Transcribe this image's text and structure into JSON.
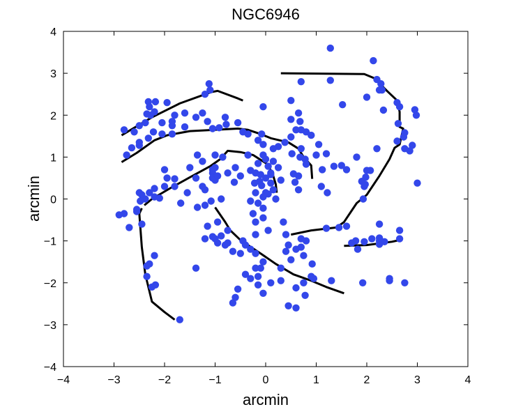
{
  "chart_data": {
    "type": "scatter",
    "title": "NGC6946",
    "xlabel": "arcmin",
    "ylabel": "arcmin",
    "xlim": [
      -4,
      4
    ],
    "ylim": [
      -4,
      4
    ],
    "xticks": [
      "−4",
      "−3",
      "−2",
      "−1",
      "0",
      "1",
      "2",
      "3",
      "4"
    ],
    "yticks": [
      "−4",
      "−3",
      "−2",
      "−1",
      "0",
      "1",
      "2",
      "3",
      "4"
    ],
    "grid": false,
    "colors": {
      "points": "#3347ea",
      "lines": "#000000"
    },
    "points": [
      [
        1.28,
        3.6
      ],
      [
        2.13,
        3.3
      ],
      [
        1.28,
        2.83
      ],
      [
        0.7,
        2.8
      ],
      [
        2.2,
        2.85
      ],
      [
        2.28,
        2.75
      ],
      [
        2.3,
        2.6
      ],
      [
        2.25,
        2.6
      ],
      [
        2.0,
        2.43
      ],
      [
        2.6,
        2.3
      ],
      [
        2.65,
        2.2
      ],
      [
        2.33,
        2.12
      ],
      [
        2.95,
        2.13
      ],
      [
        2.98,
        2.0
      ],
      [
        2.62,
        1.8
      ],
      [
        2.75,
        1.58
      ],
      [
        2.73,
        1.48
      ],
      [
        2.6,
        1.38
      ],
      [
        2.9,
        1.28
      ],
      [
        2.75,
        1.2
      ],
      [
        2.85,
        1.15
      ],
      [
        2.2,
        1.2
      ],
      [
        3.0,
        0.38
      ],
      [
        1.52,
        2.25
      ],
      [
        0.5,
        2.35
      ],
      [
        0.65,
        2.05
      ],
      [
        0.5,
        1.9
      ],
      [
        0.68,
        1.85
      ],
      [
        0.6,
        1.65
      ],
      [
        0.7,
        1.65
      ],
      [
        0.8,
        1.6
      ],
      [
        0.9,
        1.52
      ],
      [
        0.5,
        1.48
      ],
      [
        0.38,
        1.35
      ],
      [
        0.52,
        1.08
      ],
      [
        0.68,
        1.0
      ],
      [
        0.7,
        1.2
      ],
      [
        0.78,
        0.95
      ],
      [
        1.2,
        1.08
      ],
      [
        1.05,
        1.3
      ],
      [
        1.0,
        1.05
      ],
      [
        0.8,
        0.83
      ],
      [
        1.8,
        1.0
      ],
      [
        2.0,
        0.68
      ],
      [
        1.98,
        0.52
      ],
      [
        1.9,
        0.42
      ],
      [
        1.95,
        0.3
      ],
      [
        2.07,
        0.68
      ],
      [
        1.97,
        0.35
      ],
      [
        1.5,
        0.8
      ],
      [
        1.6,
        0.7
      ],
      [
        1.35,
        0.78
      ],
      [
        1.12,
        0.7
      ],
      [
        0.65,
        0.55
      ],
      [
        0.58,
        0.4
      ],
      [
        0.65,
        0.22
      ],
      [
        1.1,
        0.3
      ],
      [
        1.22,
        0.15
      ],
      [
        0.25,
        1.25
      ],
      [
        0.55,
        0.6
      ],
      [
        -0.05,
        2.2
      ],
      [
        -0.08,
        1.55
      ],
      [
        -0.15,
        1.4
      ],
      [
        -0.35,
        1.55
      ],
      [
        -0.45,
        1.6
      ],
      [
        -0.05,
        1.3
      ],
      [
        -0.35,
        1.05
      ],
      [
        -0.05,
        1.05
      ],
      [
        0.15,
        1.2
      ],
      [
        -0.15,
        0.85
      ],
      [
        0.05,
        0.78
      ],
      [
        0.15,
        0.9
      ],
      [
        -0.3,
        0.68
      ],
      [
        -0.2,
        0.62
      ],
      [
        -0.1,
        0.58
      ],
      [
        0.1,
        0.62
      ],
      [
        0.0,
        0.95
      ],
      [
        0.25,
        0.75
      ],
      [
        -0.12,
        0.42
      ],
      [
        -0.22,
        0.38
      ],
      [
        -0.08,
        0.32
      ],
      [
        0.1,
        0.38
      ],
      [
        0.15,
        0.22
      ],
      [
        0.0,
        0.15
      ],
      [
        -0.2,
        0.15
      ],
      [
        -0.05,
        0.05
      ],
      [
        -0.15,
        -0.1
      ],
      [
        0.05,
        0.12
      ],
      [
        0.2,
        0.0
      ],
      [
        -0.3,
        -0.05
      ],
      [
        -0.05,
        -0.22
      ],
      [
        -0.25,
        -0.35
      ],
      [
        -0.05,
        -0.45
      ],
      [
        -0.2,
        -0.55
      ],
      [
        0.05,
        -0.75
      ],
      [
        -0.2,
        -0.85
      ],
      [
        -0.45,
        -1.0
      ],
      [
        -0.4,
        -1.1
      ],
      [
        -0.3,
        -1.2
      ],
      [
        -0.2,
        -1.3
      ],
      [
        -0.05,
        -1.5
      ],
      [
        -0.2,
        -1.65
      ],
      [
        -0.4,
        -1.8
      ],
      [
        -0.55,
        -2.15
      ],
      [
        -0.6,
        -2.35
      ],
      [
        -0.65,
        -2.48
      ],
      [
        -0.3,
        -1.9
      ],
      [
        -0.15,
        -2.05
      ],
      [
        -0.05,
        -2.25
      ],
      [
        0.3,
        -1.95
      ],
      [
        0.1,
        -2.0
      ],
      [
        0.3,
        -1.65
      ],
      [
        0.4,
        -1.25
      ],
      [
        0.45,
        -1.1
      ],
      [
        0.6,
        -1.2
      ],
      [
        0.7,
        -1.15
      ],
      [
        0.7,
        -0.95
      ],
      [
        0.8,
        -1.0
      ],
      [
        0.75,
        -1.35
      ],
      [
        0.5,
        -1.45
      ],
      [
        0.9,
        -1.85
      ],
      [
        0.95,
        -1.9
      ],
      [
        0.75,
        -2.0
      ],
      [
        0.6,
        -2.12
      ],
      [
        0.45,
        -2.55
      ],
      [
        0.6,
        -2.6
      ],
      [
        0.78,
        -2.3
      ],
      [
        0.92,
        -1.55
      ],
      [
        1.3,
        -1.95
      ],
      [
        0.4,
        -0.85
      ],
      [
        1.2,
        -0.7
      ],
      [
        1.45,
        -0.68
      ],
      [
        1.6,
        -0.65
      ],
      [
        1.78,
        -1.0
      ],
      [
        1.7,
        -1.05
      ],
      [
        1.82,
        -1.2
      ],
      [
        1.95,
        -1.02
      ],
      [
        2.1,
        -0.95
      ],
      [
        2.25,
        -0.93
      ],
      [
        2.25,
        -1.0
      ],
      [
        2.35,
        -1.02
      ],
      [
        2.25,
        -1.08
      ],
      [
        2.65,
        -0.75
      ],
      [
        2.65,
        -0.95
      ],
      [
        2.45,
        -1.9
      ],
      [
        2.45,
        -1.95
      ],
      [
        1.92,
        -2.0
      ],
      [
        2.75,
        -2.0
      ],
      [
        2.25,
        -0.6
      ],
      [
        1.93,
        0.0
      ],
      [
        -1.25,
        2.05
      ],
      [
        -1.12,
        2.75
      ],
      [
        -1.1,
        2.6
      ],
      [
        -1.2,
        2.5
      ],
      [
        -1.6,
        2.05
      ],
      [
        -1.8,
        2.0
      ],
      [
        -1.85,
        1.75
      ],
      [
        -1.85,
        1.85
      ],
      [
        -1.6,
        1.72
      ],
      [
        -1.38,
        1.95
      ],
      [
        -1.15,
        1.85
      ],
      [
        -1.05,
        1.68
      ],
      [
        -0.92,
        1.7
      ],
      [
        -0.78,
        1.78
      ],
      [
        -0.8,
        1.95
      ],
      [
        -0.55,
        1.82
      ],
      [
        -2.18,
        2.32
      ],
      [
        -2.28,
        2.0
      ],
      [
        -2.22,
        1.6
      ],
      [
        -2.32,
        1.45
      ],
      [
        -2.5,
        1.28
      ],
      [
        -2.6,
        1.6
      ],
      [
        -2.5,
        1.75
      ],
      [
        -2.5,
        1.35
      ],
      [
        -2.65,
        1.22
      ],
      [
        -2.38,
        1.82
      ],
      [
        -2.35,
        2.03
      ],
      [
        -2.2,
        2.08
      ],
      [
        -2.05,
        1.82
      ],
      [
        -2.05,
        1.55
      ],
      [
        -1.85,
        1.55
      ],
      [
        -2.32,
        2.32
      ],
      [
        -2.3,
        2.2
      ],
      [
        -2.8,
        1.65
      ],
      [
        -1.95,
        2.3
      ],
      [
        -2.75,
        1.05
      ],
      [
        -1.0,
        1.05
      ],
      [
        -1.25,
        0.9
      ],
      [
        -1.35,
        1.05
      ],
      [
        -1.5,
        0.75
      ],
      [
        -1.38,
        0.5
      ],
      [
        -1.25,
        0.3
      ],
      [
        -1.2,
        0.22
      ],
      [
        -1.0,
        0.75
      ],
      [
        -1.05,
        0.62
      ],
      [
        -1.05,
        0.5
      ],
      [
        -1.0,
        0.45
      ],
      [
        -1.05,
        0.7
      ],
      [
        -0.95,
        0.55
      ],
      [
        -0.88,
        0.0
      ],
      [
        -0.62,
        0.4
      ],
      [
        -0.75,
        0.62
      ],
      [
        -0.5,
        0.55
      ],
      [
        -1.8,
        0.48
      ],
      [
        -1.8,
        0.3
      ],
      [
        -1.95,
        0.5
      ],
      [
        -2.0,
        0.3
      ],
      [
        -2.0,
        0.7
      ],
      [
        -2.2,
        0.25
      ],
      [
        -2.3,
        0.15
      ],
      [
        -2.2,
        0.05
      ],
      [
        -2.1,
        0.02
      ],
      [
        -2.38,
        0.0
      ],
      [
        -2.45,
        0.1
      ],
      [
        -2.5,
        0.15
      ],
      [
        -2.48,
        -0.05
      ],
      [
        -2.55,
        -0.3
      ],
      [
        -2.8,
        -0.35
      ],
      [
        -2.9,
        -0.38
      ],
      [
        -2.7,
        -0.68
      ],
      [
        -2.45,
        -0.6
      ],
      [
        -2.55,
        -0.25
      ],
      [
        -1.68,
        -0.1
      ],
      [
        -1.55,
        0.15
      ],
      [
        -1.35,
        -0.2
      ],
      [
        -1.2,
        -0.15
      ],
      [
        -1.15,
        -0.65
      ],
      [
        -0.95,
        -0.55
      ],
      [
        -1.05,
        -0.9
      ],
      [
        -1.2,
        -0.95
      ],
      [
        -1.0,
        -0.95
      ],
      [
        -0.88,
        -0.88
      ],
      [
        -0.75,
        -0.75
      ],
      [
        -0.75,
        -1.05
      ],
      [
        -0.65,
        -1.25
      ],
      [
        -0.5,
        -1.3
      ],
      [
        -0.8,
        -1.1
      ],
      [
        -0.95,
        -1.05
      ],
      [
        -1.38,
        -1.65
      ],
      [
        -2.2,
        -1.35
      ],
      [
        -2.3,
        -1.55
      ],
      [
        -2.35,
        -1.6
      ],
      [
        -2.25,
        -2.1
      ],
      [
        -2.18,
        -2.05
      ],
      [
        -2.35,
        -1.85
      ],
      [
        -1.7,
        -2.88
      ],
      [
        -0.15,
        -1.85
      ],
      [
        -0.1,
        -1.65
      ],
      [
        0.35,
        -0.55
      ],
      [
        -1.08,
        -0.05
      ],
      [
        -0.85,
        1.0
      ],
      [
        -0.6,
        0.75
      ],
      [
        0.0,
        0.5
      ],
      [
        0.3,
        0.45
      ],
      [
        0.1,
        0.58
      ]
    ],
    "arms": [
      [
        [
          0.3,
          3.0
        ],
        [
          1.95,
          2.98
        ],
        [
          2.15,
          2.88
        ],
        [
          2.4,
          2.58
        ],
        [
          2.6,
          2.35
        ],
        [
          2.65,
          2.08
        ],
        [
          2.65,
          1.72
        ],
        [
          2.72,
          1.68
        ],
        [
          2.65,
          1.3
        ],
        [
          2.55,
          1.22
        ],
        [
          2.45,
          0.95
        ],
        [
          2.25,
          0.55
        ],
        [
          2.0,
          0.1
        ],
        [
          1.8,
          -0.1
        ],
        [
          1.55,
          -0.55
        ],
        [
          1.4,
          -0.68
        ],
        [
          0.9,
          -0.75
        ],
        [
          0.5,
          -0.85
        ]
      ],
      [
        [
          1.55,
          -1.12
        ],
        [
          2.0,
          -1.1
        ],
        [
          2.5,
          -1.02
        ],
        [
          2.65,
          -0.98
        ]
      ],
      [
        [
          -2.85,
          1.52
        ],
        [
          -2.25,
          1.95
        ],
        [
          -1.7,
          2.28
        ],
        [
          -1.08,
          2.55
        ],
        [
          -0.95,
          2.58
        ],
        [
          -0.55,
          2.4
        ],
        [
          -0.45,
          2.35
        ]
      ],
      [
        [
          -2.85,
          0.88
        ],
        [
          -2.55,
          1.1
        ],
        [
          -2.2,
          1.4
        ],
        [
          -1.95,
          1.52
        ],
        [
          -1.5,
          1.62
        ],
        [
          -1.0,
          1.65
        ],
        [
          -0.55,
          1.68
        ],
        [
          -0.35,
          1.65
        ],
        [
          -0.1,
          1.55
        ],
        [
          0.1,
          1.45
        ],
        [
          0.45,
          1.35
        ],
        [
          0.65,
          1.2
        ],
        [
          0.75,
          1.0
        ],
        [
          0.9,
          0.8
        ],
        [
          0.92,
          0.48
        ]
      ],
      [
        [
          -2.4,
          -0.15
        ],
        [
          -2.25,
          0.0
        ],
        [
          -1.9,
          0.25
        ],
        [
          -1.45,
          0.55
        ],
        [
          -1.1,
          0.78
        ],
        [
          -0.9,
          0.95
        ],
        [
          -0.75,
          1.15
        ],
        [
          -0.5,
          1.12
        ],
        [
          -0.25,
          1.05
        ],
        [
          0.05,
          0.82
        ],
        [
          0.15,
          0.55
        ],
        [
          0.2,
          0.35
        ],
        [
          0.22,
          0.15
        ]
      ],
      [
        [
          -2.45,
          -0.22
        ],
        [
          -2.5,
          -0.35
        ],
        [
          -2.45,
          -1.15
        ],
        [
          -2.38,
          -1.8
        ],
        [
          -2.25,
          -2.45
        ],
        [
          -2.0,
          -2.7
        ],
        [
          -1.8,
          -2.88
        ]
      ],
      [
        [
          -1.0,
          -0.2
        ],
        [
          -0.8,
          -0.55
        ],
        [
          -0.7,
          -0.75
        ],
        [
          -0.5,
          -0.98
        ],
        [
          -0.1,
          -1.3
        ],
        [
          0.2,
          -1.55
        ],
        [
          0.55,
          -1.8
        ],
        [
          0.9,
          -1.95
        ],
        [
          1.2,
          -2.1
        ],
        [
          1.55,
          -2.25
        ]
      ]
    ]
  }
}
